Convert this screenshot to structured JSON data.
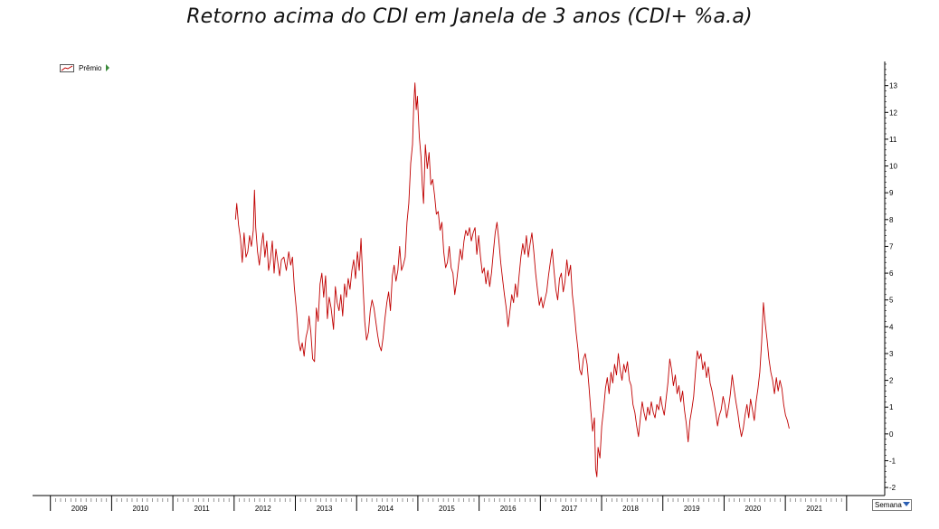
{
  "chart_data": {
    "type": "line",
    "title": "Retorno acima do CDI em Janela de 3 anos  (CDI+ %a.a)",
    "xlabel": "",
    "ylabel": "",
    "legend": {
      "label": "Prêmio",
      "placement": "top-left"
    },
    "x_ticks": [
      "2009",
      "2010",
      "2011",
      "2012",
      "2013",
      "2014",
      "2015",
      "2016",
      "2017",
      "2018",
      "2019",
      "2020",
      "2021"
    ],
    "y_ticks": [
      "-2",
      "-1",
      "0",
      "1",
      "2",
      "3",
      "4",
      "5",
      "6",
      "7",
      "8",
      "9",
      "10",
      "11",
      "12",
      "13"
    ],
    "ylim": [
      -2.3,
      13.9
    ],
    "xlim": [
      2008.65,
      2022.15
    ],
    "y_axis_side": "right",
    "grid": false,
    "series": [
      {
        "name": "Prêmio",
        "color": "#c00000",
        "points": [
          [
            2011.55,
            8.0
          ],
          [
            2011.57,
            8.6
          ],
          [
            2011.6,
            7.8
          ],
          [
            2011.63,
            7.3
          ],
          [
            2011.66,
            6.4
          ],
          [
            2011.69,
            7.5
          ],
          [
            2011.72,
            6.6
          ],
          [
            2011.75,
            6.8
          ],
          [
            2011.78,
            7.4
          ],
          [
            2011.81,
            7.0
          ],
          [
            2011.84,
            7.6
          ],
          [
            2011.86,
            9.1
          ],
          [
            2011.88,
            7.7
          ],
          [
            2011.91,
            6.8
          ],
          [
            2011.94,
            6.3
          ],
          [
            2011.97,
            7.0
          ],
          [
            2012.0,
            7.5
          ],
          [
            2012.03,
            6.6
          ],
          [
            2012.06,
            7.2
          ],
          [
            2012.09,
            6.1
          ],
          [
            2012.12,
            6.5
          ],
          [
            2012.15,
            7.2
          ],
          [
            2012.18,
            6.0
          ],
          [
            2012.21,
            6.9
          ],
          [
            2012.24,
            6.4
          ],
          [
            2012.27,
            5.9
          ],
          [
            2012.3,
            6.5
          ],
          [
            2012.34,
            6.6
          ],
          [
            2012.38,
            6.1
          ],
          [
            2012.42,
            6.8
          ],
          [
            2012.45,
            6.3
          ],
          [
            2012.48,
            6.6
          ],
          [
            2012.51,
            5.5
          ],
          [
            2012.55,
            4.5
          ],
          [
            2012.58,
            3.5
          ],
          [
            2012.61,
            3.1
          ],
          [
            2012.64,
            3.4
          ],
          [
            2012.67,
            2.9
          ],
          [
            2012.7,
            3.6
          ],
          [
            2012.73,
            3.9
          ],
          [
            2012.75,
            4.4
          ],
          [
            2012.78,
            3.8
          ],
          [
            2012.81,
            2.8
          ],
          [
            2012.84,
            2.7
          ],
          [
            2012.87,
            4.7
          ],
          [
            2012.9,
            4.2
          ],
          [
            2012.93,
            5.6
          ],
          [
            2012.96,
            6.0
          ],
          [
            2012.99,
            5.1
          ],
          [
            2013.02,
            5.9
          ],
          [
            2013.05,
            4.3
          ],
          [
            2013.08,
            5.1
          ],
          [
            2013.11,
            4.7
          ],
          [
            2013.15,
            3.9
          ],
          [
            2013.18,
            5.5
          ],
          [
            2013.21,
            4.9
          ],
          [
            2013.24,
            4.6
          ],
          [
            2013.27,
            5.2
          ],
          [
            2013.3,
            4.4
          ],
          [
            2013.33,
            5.6
          ],
          [
            2013.36,
            5.1
          ],
          [
            2013.39,
            5.8
          ],
          [
            2013.42,
            5.4
          ],
          [
            2013.45,
            6.1
          ],
          [
            2013.48,
            6.5
          ],
          [
            2013.51,
            5.8
          ],
          [
            2013.54,
            6.8
          ],
          [
            2013.57,
            6.1
          ],
          [
            2013.6,
            7.3
          ],
          [
            2013.63,
            5.6
          ],
          [
            2013.66,
            4.2
          ],
          [
            2013.69,
            3.5
          ],
          [
            2013.72,
            3.8
          ],
          [
            2013.75,
            4.6
          ],
          [
            2013.78,
            5.0
          ],
          [
            2013.81,
            4.7
          ],
          [
            2013.84,
            4.2
          ],
          [
            2013.87,
            3.7
          ],
          [
            2013.9,
            3.3
          ],
          [
            2013.93,
            3.1
          ],
          [
            2013.96,
            3.6
          ],
          [
            2013.99,
            4.3
          ],
          [
            2014.02,
            4.9
          ],
          [
            2014.05,
            5.3
          ],
          [
            2014.08,
            4.6
          ],
          [
            2014.11,
            5.9
          ],
          [
            2014.14,
            6.3
          ],
          [
            2014.17,
            5.7
          ],
          [
            2014.2,
            6.1
          ],
          [
            2014.23,
            7.0
          ],
          [
            2014.26,
            6.1
          ],
          [
            2014.29,
            6.3
          ],
          [
            2014.32,
            6.6
          ],
          [
            2014.35,
            7.9
          ],
          [
            2014.38,
            8.6
          ],
          [
            2014.41,
            10.1
          ],
          [
            2014.44,
            10.8
          ],
          [
            2014.46,
            12.3
          ],
          [
            2014.48,
            13.1
          ],
          [
            2014.5,
            12.1
          ],
          [
            2014.52,
            12.6
          ],
          [
            2014.55,
            11.1
          ],
          [
            2014.58,
            10.3
          ],
          [
            2014.6,
            9.3
          ],
          [
            2014.62,
            8.6
          ],
          [
            2014.65,
            10.8
          ],
          [
            2014.68,
            9.9
          ],
          [
            2014.71,
            10.5
          ],
          [
            2014.74,
            9.3
          ],
          [
            2014.77,
            9.5
          ],
          [
            2014.8,
            8.9
          ],
          [
            2014.83,
            8.2
          ],
          [
            2014.86,
            8.3
          ],
          [
            2014.89,
            7.6
          ],
          [
            2014.92,
            7.9
          ],
          [
            2014.95,
            6.8
          ],
          [
            2014.98,
            6.2
          ],
          [
            2015.01,
            6.4
          ],
          [
            2015.04,
            7.0
          ],
          [
            2015.07,
            6.2
          ],
          [
            2015.1,
            6.0
          ],
          [
            2015.13,
            5.2
          ],
          [
            2015.16,
            5.7
          ],
          [
            2015.19,
            6.3
          ],
          [
            2015.22,
            6.9
          ],
          [
            2015.25,
            6.5
          ],
          [
            2015.28,
            7.2
          ],
          [
            2015.31,
            7.6
          ],
          [
            2015.34,
            7.4
          ],
          [
            2015.37,
            7.7
          ],
          [
            2015.4,
            7.2
          ],
          [
            2015.43,
            7.5
          ],
          [
            2015.46,
            7.7
          ],
          [
            2015.49,
            6.7
          ],
          [
            2015.52,
            7.4
          ],
          [
            2015.55,
            6.6
          ],
          [
            2015.58,
            6.0
          ],
          [
            2015.61,
            6.2
          ],
          [
            2015.64,
            5.6
          ],
          [
            2015.67,
            6.1
          ],
          [
            2015.7,
            5.5
          ],
          [
            2015.73,
            6.0
          ],
          [
            2015.76,
            6.8
          ],
          [
            2015.79,
            7.5
          ],
          [
            2015.82,
            7.9
          ],
          [
            2015.85,
            7.2
          ],
          [
            2015.88,
            6.4
          ],
          [
            2015.91,
            5.8
          ],
          [
            2015.94,
            5.2
          ],
          [
            2015.97,
            4.7
          ],
          [
            2016.0,
            4.0
          ],
          [
            2016.03,
            4.6
          ],
          [
            2016.06,
            5.2
          ],
          [
            2016.09,
            4.9
          ],
          [
            2016.12,
            5.6
          ],
          [
            2016.15,
            5.1
          ],
          [
            2016.18,
            5.9
          ],
          [
            2016.21,
            6.6
          ],
          [
            2016.24,
            7.1
          ],
          [
            2016.27,
            6.7
          ],
          [
            2016.3,
            7.4
          ],
          [
            2016.33,
            6.6
          ],
          [
            2016.36,
            7.1
          ],
          [
            2016.39,
            7.5
          ],
          [
            2016.42,
            6.8
          ],
          [
            2016.45,
            6.0
          ],
          [
            2016.48,
            5.4
          ],
          [
            2016.51,
            4.8
          ],
          [
            2016.54,
            5.1
          ],
          [
            2016.57,
            4.7
          ],
          [
            2016.6,
            5.0
          ],
          [
            2016.63,
            5.3
          ],
          [
            2016.66,
            5.9
          ],
          [
            2016.69,
            6.4
          ],
          [
            2016.72,
            6.9
          ],
          [
            2016.75,
            6.1
          ],
          [
            2016.78,
            5.4
          ],
          [
            2016.81,
            5.0
          ],
          [
            2016.84,
            5.8
          ],
          [
            2016.87,
            6.0
          ],
          [
            2016.9,
            5.3
          ],
          [
            2016.93,
            5.7
          ],
          [
            2016.96,
            6.5
          ],
          [
            2016.99,
            5.9
          ],
          [
            2017.02,
            6.3
          ],
          [
            2017.05,
            5.2
          ],
          [
            2017.08,
            4.6
          ],
          [
            2017.11,
            3.8
          ],
          [
            2017.14,
            3.2
          ],
          [
            2017.17,
            2.4
          ],
          [
            2017.2,
            2.2
          ],
          [
            2017.23,
            2.8
          ],
          [
            2017.26,
            3.0
          ],
          [
            2017.29,
            2.6
          ],
          [
            2017.32,
            1.8
          ],
          [
            2017.35,
            0.9
          ],
          [
            2017.38,
            0.1
          ],
          [
            2017.41,
            0.6
          ],
          [
            2017.43,
            -1.3
          ],
          [
            2017.45,
            -1.6
          ],
          [
            2017.47,
            -0.5
          ],
          [
            2017.5,
            -0.9
          ],
          [
            2017.53,
            0.3
          ],
          [
            2017.56,
            0.9
          ],
          [
            2017.59,
            1.7
          ],
          [
            2017.62,
            2.1
          ],
          [
            2017.65,
            1.5
          ],
          [
            2017.68,
            2.3
          ],
          [
            2017.71,
            1.9
          ],
          [
            2017.74,
            2.6
          ],
          [
            2017.77,
            2.2
          ],
          [
            2017.8,
            3.0
          ],
          [
            2017.83,
            2.4
          ],
          [
            2017.86,
            2.0
          ],
          [
            2017.89,
            2.6
          ],
          [
            2017.92,
            2.3
          ],
          [
            2017.95,
            2.7
          ],
          [
            2017.98,
            2.0
          ],
          [
            2018.01,
            1.8
          ],
          [
            2018.04,
            1.1
          ],
          [
            2018.07,
            0.8
          ],
          [
            2018.1,
            0.3
          ],
          [
            2018.13,
            -0.1
          ],
          [
            2018.16,
            0.6
          ],
          [
            2018.19,
            1.2
          ],
          [
            2018.22,
            0.8
          ],
          [
            2018.25,
            0.5
          ],
          [
            2018.28,
            1.0
          ],
          [
            2018.31,
            0.7
          ],
          [
            2018.34,
            1.2
          ],
          [
            2018.37,
            0.8
          ],
          [
            2018.4,
            0.6
          ],
          [
            2018.43,
            1.1
          ],
          [
            2018.46,
            0.9
          ],
          [
            2018.49,
            1.4
          ],
          [
            2018.52,
            1.0
          ],
          [
            2018.55,
            0.7
          ],
          [
            2018.58,
            1.3
          ],
          [
            2018.61,
            1.9
          ],
          [
            2018.64,
            2.8
          ],
          [
            2018.67,
            2.4
          ],
          [
            2018.7,
            1.8
          ],
          [
            2018.73,
            2.2
          ],
          [
            2018.76,
            1.5
          ],
          [
            2018.79,
            1.8
          ],
          [
            2018.82,
            1.2
          ],
          [
            2018.85,
            1.6
          ],
          [
            2018.88,
            0.9
          ],
          [
            2018.91,
            0.4
          ],
          [
            2018.94,
            -0.3
          ],
          [
            2018.97,
            0.5
          ],
          [
            2019.0,
            0.9
          ],
          [
            2019.03,
            1.4
          ],
          [
            2019.06,
            2.3
          ],
          [
            2019.09,
            3.1
          ],
          [
            2019.12,
            2.8
          ],
          [
            2019.15,
            3.0
          ],
          [
            2019.18,
            2.4
          ],
          [
            2019.21,
            2.7
          ],
          [
            2019.24,
            2.1
          ],
          [
            2019.27,
            2.5
          ],
          [
            2019.3,
            1.9
          ],
          [
            2019.33,
            1.6
          ],
          [
            2019.36,
            1.2
          ],
          [
            2019.39,
            0.8
          ],
          [
            2019.42,
            0.3
          ],
          [
            2019.45,
            0.7
          ],
          [
            2019.48,
            0.9
          ],
          [
            2019.51,
            1.4
          ],
          [
            2019.54,
            1.1
          ],
          [
            2019.57,
            0.6
          ],
          [
            2019.6,
            1.0
          ],
          [
            2019.63,
            1.5
          ],
          [
            2019.66,
            2.2
          ],
          [
            2019.69,
            1.7
          ],
          [
            2019.72,
            1.2
          ],
          [
            2019.75,
            0.8
          ],
          [
            2019.78,
            0.3
          ],
          [
            2019.81,
            -0.1
          ],
          [
            2019.84,
            0.2
          ],
          [
            2019.87,
            0.7
          ],
          [
            2019.9,
            1.1
          ],
          [
            2019.93,
            0.6
          ],
          [
            2019.96,
            1.3
          ],
          [
            2019.99,
            0.9
          ],
          [
            2020.02,
            0.5
          ],
          [
            2020.05,
            1.2
          ],
          [
            2020.08,
            1.7
          ],
          [
            2020.11,
            2.3
          ],
          [
            2020.14,
            3.4
          ],
          [
            2020.17,
            4.9
          ],
          [
            2020.2,
            4.1
          ],
          [
            2020.23,
            3.5
          ],
          [
            2020.26,
            2.8
          ],
          [
            2020.29,
            2.3
          ],
          [
            2020.32,
            2.0
          ],
          [
            2020.35,
            1.5
          ],
          [
            2020.38,
            2.1
          ],
          [
            2020.41,
            1.6
          ],
          [
            2020.44,
            2.0
          ],
          [
            2020.47,
            1.7
          ],
          [
            2020.5,
            1.1
          ],
          [
            2020.53,
            0.7
          ],
          [
            2020.56,
            0.5
          ],
          [
            2020.59,
            0.2
          ]
        ]
      }
    ]
  },
  "period_selector": {
    "value": "Semana"
  }
}
